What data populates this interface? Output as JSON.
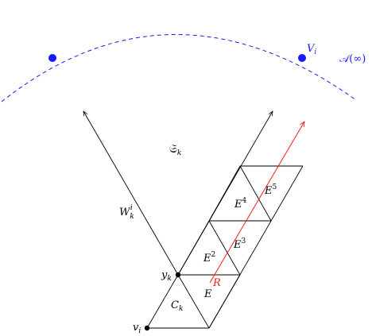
{
  "labels": {
    "V_i": {
      "base": "V",
      "sub": "i"
    },
    "A_inf": {
      "text": "𝒜(∞)"
    },
    "S_k": {
      "base": "𝔖",
      "sub": "k"
    },
    "W_k_i": {
      "base": "W",
      "sub": "k",
      "sup": "i"
    },
    "E4": {
      "base": "E",
      "sup": "4"
    },
    "E5": {
      "base": "E",
      "sup": "5"
    },
    "E3": {
      "base": "E",
      "sup": "3"
    },
    "E2": {
      "base": "E",
      "sup": "2"
    },
    "E": {
      "base": "E"
    },
    "y_k": {
      "base": "y",
      "sub": "k"
    },
    "R": {
      "base": "R"
    },
    "C_k": {
      "base": "C",
      "sub": "k"
    },
    "v_i": {
      "base": "v",
      "sub": "i"
    }
  },
  "colors": {
    "ink": "#000000",
    "blue": "#1a1aff",
    "red": "#ff1a1a"
  }
}
